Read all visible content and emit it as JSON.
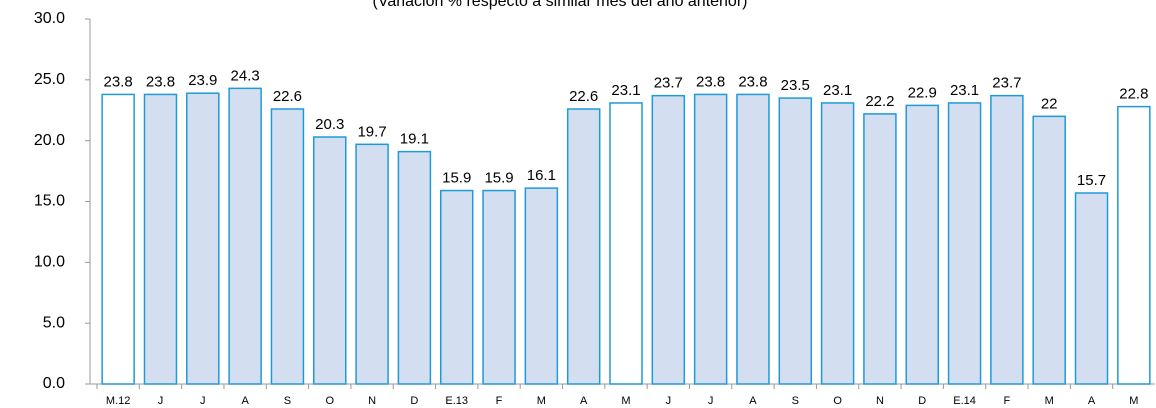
{
  "chart_data": {
    "type": "bar",
    "subtitle": "(Variación % respecto a similar mes del año anterior)",
    "categories": [
      "M.12",
      "J",
      "J",
      "A",
      "S",
      "O",
      "N",
      "D",
      "E.13",
      "F",
      "M",
      "A",
      "M",
      "J",
      "J",
      "A",
      "S",
      "O",
      "N",
      "D",
      "E.14",
      "F",
      "M",
      "A",
      "M"
    ],
    "values": [
      23.8,
      23.8,
      23.9,
      24.3,
      22.6,
      20.3,
      19.7,
      19.1,
      15.9,
      15.9,
      16.1,
      22.6,
      23.1,
      23.7,
      23.8,
      23.8,
      23.5,
      23.1,
      22.2,
      22.9,
      23.1,
      23.7,
      22.0,
      15.7,
      22.8
    ],
    "colors": [
      "#ffffff",
      "#d3dff0",
      "#d3dff0",
      "#d3dff0",
      "#d3dff0",
      "#d3dff0",
      "#d3dff0",
      "#d3dff0",
      "#d3dff0",
      "#d3dff0",
      "#d3dff0",
      "#d3dff0",
      "#ffffff",
      "#d3dff0",
      "#d3dff0",
      "#d3dff0",
      "#d3dff0",
      "#d3dff0",
      "#d3dff0",
      "#d3dff0",
      "#d3dff0",
      "#d3dff0",
      "#d3dff0",
      "#d3dff0",
      "#ffffff"
    ],
    "edge_color": "#1f9ad6",
    "ylim": [
      0,
      30
    ],
    "yticks": [
      {
        "value": 0,
        "label": "0.0"
      },
      {
        "value": 5,
        "label": "5.0"
      },
      {
        "value": 10,
        "label": "10.0"
      },
      {
        "value": 15,
        "label": "15.0"
      },
      {
        "value": 20,
        "label": "20.0"
      },
      {
        "value": 25,
        "label": "25.0"
      },
      {
        "value": 30,
        "label": "30.0"
      }
    ],
    "grid": false
  }
}
